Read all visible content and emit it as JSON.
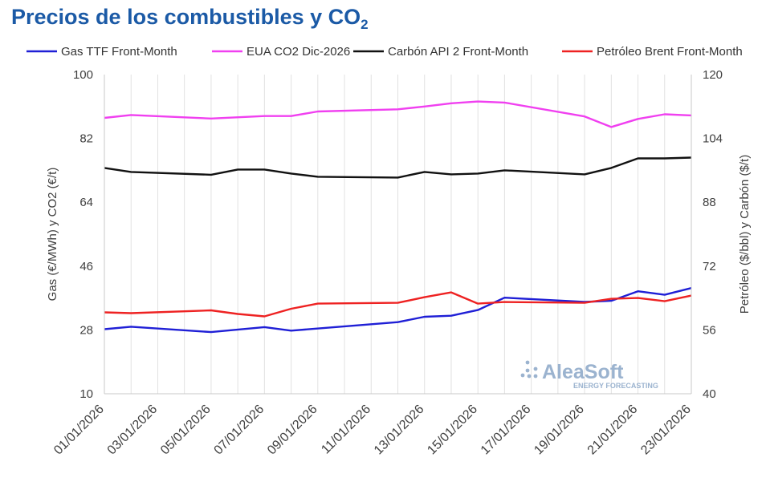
{
  "title": "Precios de los combustibles y CO",
  "title_subscript": "2",
  "chart_data": {
    "type": "line",
    "title": "Precios de los combustibles y CO2",
    "categories": [
      "01/01/2026",
      "02/01/2026",
      "03/01/2026",
      "04/01/2026",
      "05/01/2026",
      "06/01/2026",
      "07/01/2026",
      "08/01/2026",
      "09/01/2026",
      "10/01/2026",
      "11/01/2026",
      "12/01/2026",
      "13/01/2026",
      "14/01/2026",
      "15/01/2026",
      "16/01/2026",
      "17/01/2026",
      "18/01/2026",
      "19/01/2026",
      "20/01/2026",
      "21/01/2026",
      "22/01/2026",
      "23/01/2026"
    ],
    "tick_labels": [
      "01/01/2026",
      "03/01/2026",
      "05/01/2026",
      "07/01/2026",
      "09/01/2026",
      "11/01/2026",
      "13/01/2026",
      "15/01/2026",
      "17/01/2026",
      "19/01/2026",
      "21/01/2026",
      "23/01/2026"
    ],
    "y_left": {
      "label": "Gas (€/MWh) y CO2 (€/t)",
      "min": 10,
      "max": 100,
      "ticks": [
        10,
        28,
        46,
        64,
        82,
        100
      ]
    },
    "y_right": {
      "label": "Petróleo ($/bbl) y Carbón ($/t)",
      "min": 40,
      "max": 120,
      "ticks": [
        40,
        56,
        72,
        88,
        104,
        120
      ]
    },
    "series": [
      {
        "name": "Gas TTF Front-Month",
        "color": "#1f1fd6",
        "axis": "left",
        "values": [
          28.2,
          28.9,
          null,
          null,
          27.4,
          null,
          28.8,
          27.8,
          null,
          null,
          null,
          30.2,
          31.7,
          32.0,
          33.6,
          37.1,
          null,
          null,
          35.9,
          36.2,
          38.9,
          37.9,
          39.8
        ]
      },
      {
        "name": "EUA CO2 Dic-2026",
        "color": "#f040f0",
        "axis": "left",
        "values": [
          87.8,
          88.6,
          null,
          null,
          87.6,
          null,
          88.3,
          88.3,
          89.6,
          null,
          null,
          90.2,
          91.0,
          91.9,
          92.4,
          92.1,
          null,
          null,
          88.2,
          85.2,
          87.5,
          88.8,
          88.5
        ]
      },
      {
        "name": "Carbón API 2 Front-Month",
        "color": "#111111",
        "axis": "right",
        "values": [
          96.6,
          95.6,
          null,
          null,
          94.9,
          96.2,
          96.2,
          95.2,
          94.4,
          null,
          null,
          94.2,
          95.6,
          95.0,
          95.2,
          96.0,
          null,
          null,
          95.0,
          96.6,
          99.0,
          99.0,
          99.2
        ]
      },
      {
        "name": "Petróleo Brent Front-Month",
        "color": "#ee2222",
        "axis": "right",
        "values": [
          60.4,
          60.2,
          null,
          null,
          60.9,
          60.0,
          59.4,
          61.3,
          62.6,
          null,
          null,
          62.8,
          64.2,
          65.4,
          62.6,
          63.0,
          null,
          null,
          62.8,
          63.8,
          64.0,
          63.2,
          64.6
        ]
      }
    ],
    "legend_position": "top",
    "grid": "vertical",
    "watermark": "AleaSoft",
    "watermark_sub": "ENERGY FORECASTING"
  }
}
